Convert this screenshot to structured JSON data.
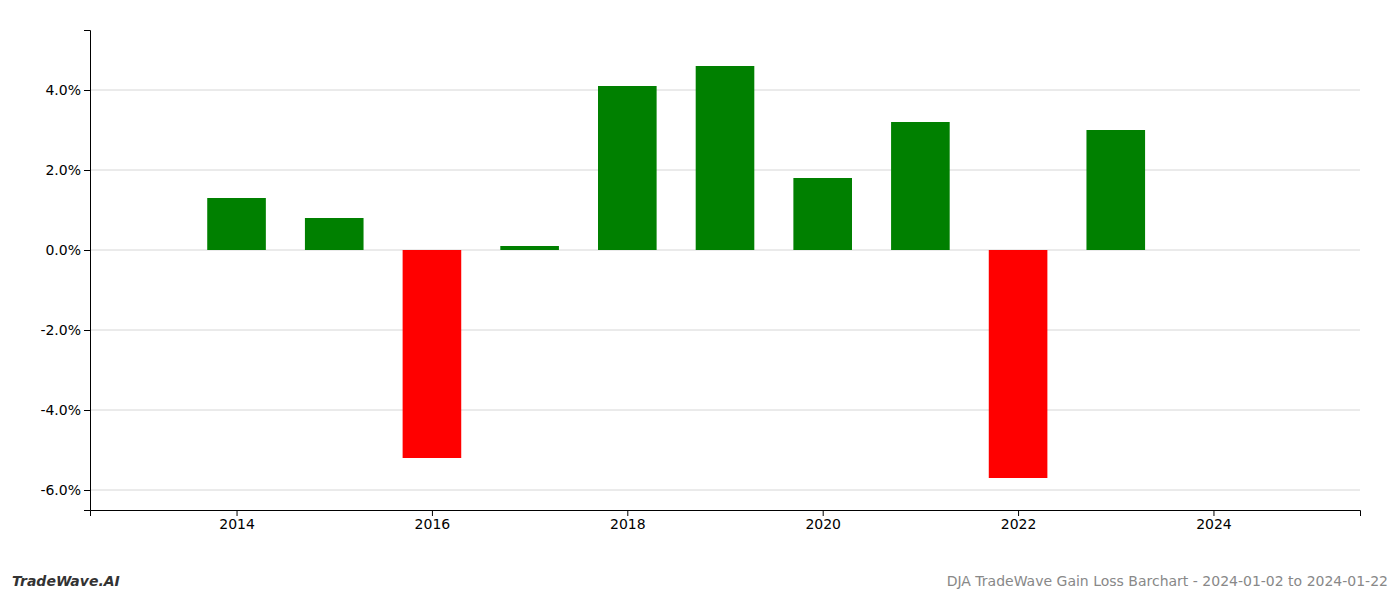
{
  "chart_data": {
    "type": "bar",
    "x": [
      2014,
      2015,
      2016,
      2017,
      2018,
      2019,
      2020,
      2021,
      2022,
      2023
    ],
    "values": [
      0.013,
      0.008,
      -0.052,
      0.001,
      0.041,
      0.046,
      0.018,
      0.032,
      -0.057,
      0.03
    ],
    "colors": [
      "#008000",
      "#008000",
      "#ff0000",
      "#008000",
      "#008000",
      "#008000",
      "#008000",
      "#008000",
      "#ff0000",
      "#008000"
    ],
    "xlim": [
      2012.5,
      2025.5
    ],
    "xticks": [
      2014,
      2016,
      2018,
      2020,
      2022,
      2024
    ],
    "ylim": [
      -0.065,
      0.055
    ],
    "yticks": [
      {
        "value": -0.06,
        "label": "-6.0%"
      },
      {
        "value": -0.04,
        "label": "-4.0%"
      },
      {
        "value": -0.02,
        "label": "-2.0%"
      },
      {
        "value": 0.0,
        "label": "0.0%"
      },
      {
        "value": 0.02,
        "label": "2.0%"
      },
      {
        "value": 0.04,
        "label": "4.0%"
      }
    ],
    "grid": true,
    "annotations": [
      "TradeWave.AI",
      "DJA TradeWave Gain Loss Barchart - 2024-01-02 to 2024-01-22"
    ]
  }
}
